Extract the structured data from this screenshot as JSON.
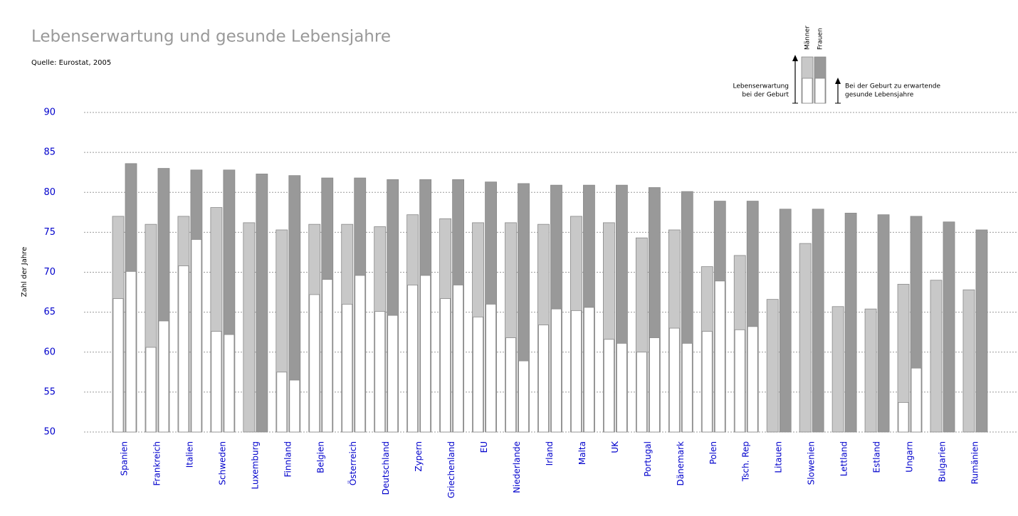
{
  "chart_data": {
    "type": "bar",
    "title": "Lebenserwartung und gesunde Lebensjahre",
    "subtitle": "Quelle: Eurostat, 2005",
    "y_label": "Zahl der Jahre",
    "legend_total": [
      "Lebenserwartung",
      "bei der Geburt"
    ],
    "legend_healthy": [
      "Bei der Geburt zu erwartende",
      "gesunde Lebensjahre"
    ],
    "healthy_color": "#ffffff",
    "categories": [
      "Spanien",
      "Frankreich",
      "Italien",
      "Schweden",
      "Luxemburg",
      "Finnland",
      "Belgien",
      "Österreich",
      "Deutschland",
      "Zypern",
      "Griechenland",
      "EU",
      "Niederlande",
      "Irland",
      "Malta",
      "UK",
      "Portugal",
      "Dänemark",
      "Polen",
      "Tsch. Rep",
      "Litauen",
      "Slowenien",
      "Lettland",
      "Estland",
      "Ungarn",
      "Bulgarien",
      "Rumänien"
    ],
    "series": [
      {
        "name": "Männer",
        "color": "#c8c8c8",
        "values": [
          77,
          76,
          77,
          78.1,
          76.2,
          75.3,
          76,
          76,
          75.7,
          77.2,
          76.7,
          76.2,
          76.2,
          76,
          77,
          76.2,
          74.3,
          75.3,
          70.7,
          72.1,
          66.6,
          73.6,
          65.7,
          65.4,
          68.5,
          69,
          67.8
        ],
        "healthy_values": [
          66.7,
          60.6,
          70.8,
          62.6,
          null,
          57.5,
          67.2,
          66,
          65.1,
          68.4,
          66.7,
          64.4,
          61.8,
          63.4,
          65.2,
          61.6,
          60,
          63,
          62.6,
          62.8,
          null,
          null,
          null,
          null,
          53.7,
          null,
          null
        ]
      },
      {
        "name": "Frauen",
        "color": "#999999",
        "values": [
          83.6,
          83,
          82.8,
          82.8,
          82.3,
          82.1,
          81.8,
          81.8,
          81.6,
          81.6,
          81.6,
          81.3,
          81.1,
          80.9,
          80.9,
          80.9,
          80.6,
          80.1,
          78.9,
          78.9,
          77.9,
          77.9,
          77.4,
          77.2,
          77,
          76.3,
          75.3
        ],
        "healthy_values": [
          70.1,
          63.9,
          74.1,
          62.2,
          null,
          56.5,
          69.1,
          69.6,
          64.6,
          69.6,
          68.4,
          66,
          58.9,
          65.4,
          65.6,
          61.1,
          61.8,
          61.1,
          68.9,
          63.2,
          null,
          null,
          null,
          null,
          58,
          null,
          null
        ]
      }
    ],
    "ylim": [
      50,
      90
    ],
    "yticks": [
      50,
      55,
      60,
      65,
      70,
      75,
      80,
      85,
      90
    ],
    "grid": true
  }
}
